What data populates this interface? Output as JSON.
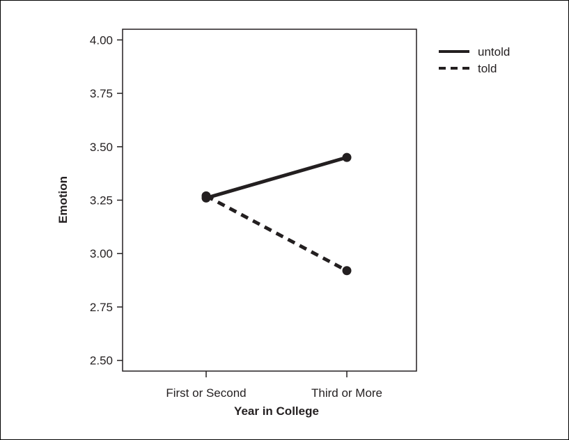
{
  "chart_data": {
    "type": "line",
    "title": "",
    "xlabel": "Year in College",
    "ylabel": "Emotion",
    "categories": [
      "First or Second",
      "Third or More"
    ],
    "ylim": [
      2.45,
      4.05
    ],
    "yticks": [
      "2.50",
      "2.75",
      "3.00",
      "3.25",
      "3.50",
      "3.75",
      "4.00"
    ],
    "grid": false,
    "legend_position": "top-right",
    "series": [
      {
        "name": "untold",
        "values": [
          3.26,
          3.45
        ],
        "style": "solid",
        "color": "#231f20"
      },
      {
        "name": "told",
        "values": [
          3.27,
          2.92
        ],
        "style": "dashed",
        "color": "#231f20"
      }
    ]
  }
}
